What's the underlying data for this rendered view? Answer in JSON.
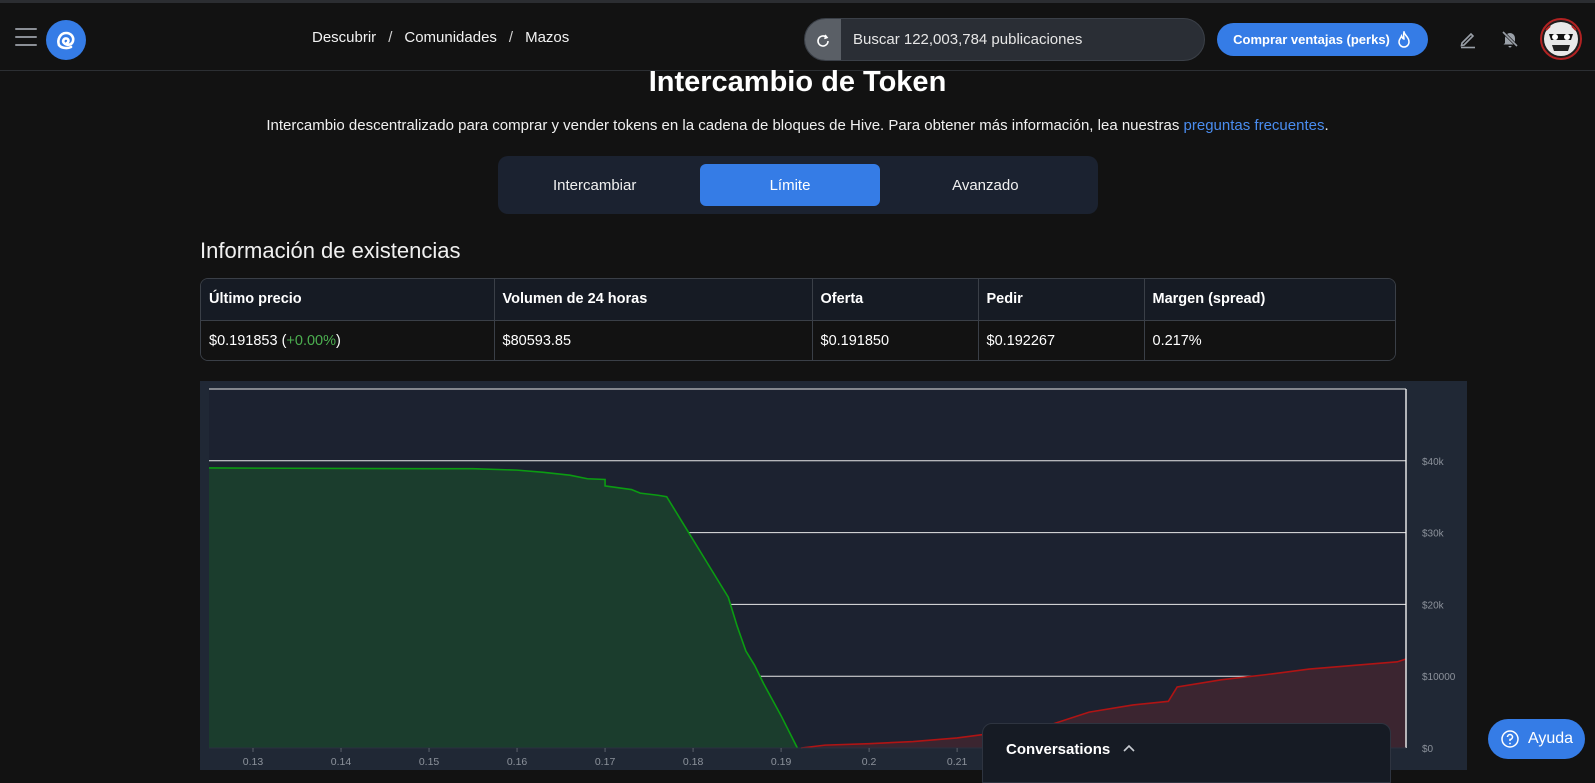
{
  "nav": {
    "breadcrumbs": [
      "Descubrir",
      "Comunidades",
      "Mazos"
    ],
    "separator": "/",
    "search_placeholder": "Buscar 122,003,784 publicaciones",
    "perks_label": "Comprar ventajas (perks)"
  },
  "header": {
    "title": "Intercambio de Token",
    "subtitle_text": "Intercambio descentralizado para comprar y vender tokens en la cadena de bloques de Hive. Para obtener más información, lea nuestras ",
    "subtitle_link": "preguntas frecuentes",
    "subtitle_end": "."
  },
  "tabs": [
    {
      "label": "Intercambiar",
      "active": false
    },
    {
      "label": "Límite",
      "active": true
    },
    {
      "label": "Avanzado",
      "active": false
    }
  ],
  "stock_info": {
    "title": "Información de existencias",
    "headers": [
      "Último precio",
      "Volumen de 24 horas",
      "Oferta",
      "Pedir",
      "Margen (spread)"
    ],
    "last_price": "$0.191853",
    "change_open": " (",
    "change": "+0.00%",
    "change_close": ")",
    "volume": "$80593.85",
    "bid": "$0.191850",
    "ask": "$0.192267",
    "spread": "0.217%"
  },
  "chart_data": {
    "type": "area",
    "x_ticks": [
      "0.13",
      "0.14",
      "0.15",
      "0.16",
      "0.17",
      "0.18",
      "0.19",
      "0.2",
      "0.21"
    ],
    "y_ticks": [
      "$0",
      "$10000",
      "$20k",
      "$30k",
      "$40k"
    ],
    "xlim": [
      0.125,
      0.261
    ],
    "ylim": [
      0,
      50000
    ],
    "series": [
      {
        "color": "#0b9c12",
        "fill": "#1b3d2d",
        "points": [
          [
            0.125,
            39000
          ],
          [
            0.15,
            38900
          ],
          [
            0.155,
            38900
          ],
          [
            0.16,
            38700
          ],
          [
            0.163,
            38400
          ],
          [
            0.166,
            38000
          ],
          [
            0.168,
            37500
          ],
          [
            0.17,
            37400
          ],
          [
            0.17,
            36500
          ],
          [
            0.173,
            36000
          ],
          [
            0.174,
            35500
          ],
          [
            0.176,
            35200
          ],
          [
            0.177,
            35000
          ],
          [
            0.179,
            31000
          ],
          [
            0.181,
            27000
          ],
          [
            0.183,
            23000
          ],
          [
            0.184,
            21000
          ],
          [
            0.185,
            17000
          ],
          [
            0.186,
            13500
          ],
          [
            0.187,
            11500
          ],
          [
            0.188,
            9000
          ],
          [
            0.19,
            4500
          ],
          [
            0.19185,
            0
          ]
        ]
      },
      {
        "color": "#b01414",
        "fill": "#3b2530",
        "points": [
          [
            0.19227,
            0
          ],
          [
            0.195,
            400
          ],
          [
            0.2,
            600
          ],
          [
            0.205,
            900
          ],
          [
            0.21,
            1400
          ],
          [
            0.215,
            2200
          ],
          [
            0.217,
            3000
          ],
          [
            0.22,
            3000
          ],
          [
            0.225,
            5000
          ],
          [
            0.23,
            6000
          ],
          [
            0.234,
            6500
          ],
          [
            0.235,
            8500
          ],
          [
            0.24,
            9500
          ],
          [
            0.245,
            10200
          ],
          [
            0.25,
            11000
          ],
          [
            0.255,
            11500
          ],
          [
            0.26,
            12000
          ],
          [
            0.261,
            12400
          ]
        ]
      }
    ]
  },
  "conversations": {
    "label": "Conversations"
  },
  "help": {
    "label": "Ayuda"
  }
}
